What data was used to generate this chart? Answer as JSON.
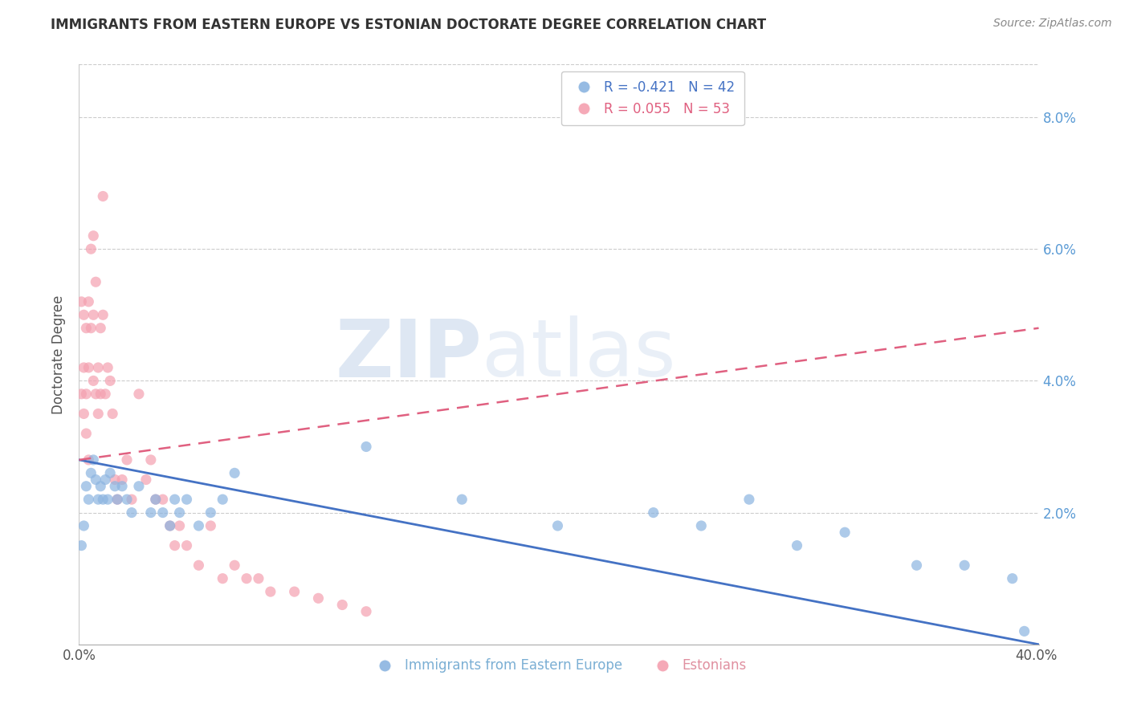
{
  "title": "IMMIGRANTS FROM EASTERN EUROPE VS ESTONIAN DOCTORATE DEGREE CORRELATION CHART",
  "source": "Source: ZipAtlas.com",
  "ylabel": "Doctorate Degree",
  "legend_labels": [
    "Immigrants from Eastern Europe",
    "Estonians"
  ],
  "legend_r": [
    -0.421,
    0.055
  ],
  "legend_n": [
    42,
    53
  ],
  "blue_color": "#8BB4E0",
  "pink_color": "#F4A0B0",
  "blue_line_color": "#4472C4",
  "pink_line_color": "#E06080",
  "watermark_zip": "ZIP",
  "watermark_atlas": "atlas",
  "right_yticks": [
    0.0,
    0.02,
    0.04,
    0.06,
    0.08
  ],
  "right_yticklabels": [
    "",
    "2.0%",
    "4.0%",
    "6.0%",
    "8.0%"
  ],
  "xlim": [
    0.0,
    0.401
  ],
  "ylim": [
    0.0,
    0.088
  ],
  "xticks": [
    0.0,
    0.05,
    0.1,
    0.15,
    0.2,
    0.25,
    0.3,
    0.35,
    0.4
  ],
  "xticklabels": [
    "0.0%",
    "",
    "",
    "",
    "",
    "",
    "",
    "",
    "40.0%"
  ],
  "blue_x": [
    0.001,
    0.002,
    0.003,
    0.004,
    0.005,
    0.006,
    0.007,
    0.008,
    0.009,
    0.01,
    0.011,
    0.012,
    0.013,
    0.015,
    0.016,
    0.018,
    0.02,
    0.022,
    0.025,
    0.03,
    0.032,
    0.035,
    0.038,
    0.04,
    0.042,
    0.045,
    0.05,
    0.055,
    0.06,
    0.065,
    0.12,
    0.16,
    0.2,
    0.24,
    0.26,
    0.28,
    0.3,
    0.32,
    0.35,
    0.37,
    0.39,
    0.395
  ],
  "blue_y": [
    0.015,
    0.018,
    0.024,
    0.022,
    0.026,
    0.028,
    0.025,
    0.022,
    0.024,
    0.022,
    0.025,
    0.022,
    0.026,
    0.024,
    0.022,
    0.024,
    0.022,
    0.02,
    0.024,
    0.02,
    0.022,
    0.02,
    0.018,
    0.022,
    0.02,
    0.022,
    0.018,
    0.02,
    0.022,
    0.026,
    0.03,
    0.022,
    0.018,
    0.02,
    0.018,
    0.022,
    0.015,
    0.017,
    0.012,
    0.012,
    0.01,
    0.002
  ],
  "pink_x": [
    0.001,
    0.001,
    0.002,
    0.002,
    0.002,
    0.003,
    0.003,
    0.003,
    0.004,
    0.004,
    0.004,
    0.005,
    0.005,
    0.006,
    0.006,
    0.006,
    0.007,
    0.007,
    0.008,
    0.008,
    0.009,
    0.009,
    0.01,
    0.01,
    0.011,
    0.012,
    0.013,
    0.014,
    0.015,
    0.016,
    0.018,
    0.02,
    0.022,
    0.025,
    0.028,
    0.03,
    0.032,
    0.035,
    0.038,
    0.04,
    0.042,
    0.045,
    0.05,
    0.055,
    0.06,
    0.065,
    0.07,
    0.075,
    0.08,
    0.09,
    0.1,
    0.11,
    0.12
  ],
  "pink_y": [
    0.038,
    0.052,
    0.05,
    0.042,
    0.035,
    0.048,
    0.038,
    0.032,
    0.042,
    0.052,
    0.028,
    0.06,
    0.048,
    0.062,
    0.05,
    0.04,
    0.055,
    0.038,
    0.042,
    0.035,
    0.048,
    0.038,
    0.068,
    0.05,
    0.038,
    0.042,
    0.04,
    0.035,
    0.025,
    0.022,
    0.025,
    0.028,
    0.022,
    0.038,
    0.025,
    0.028,
    0.022,
    0.022,
    0.018,
    0.015,
    0.018,
    0.015,
    0.012,
    0.018,
    0.01,
    0.012,
    0.01,
    0.01,
    0.008,
    0.008,
    0.007,
    0.006,
    0.005
  ],
  "blue_trend_x": [
    0.0,
    0.401
  ],
  "blue_trend_y": [
    0.028,
    0.0
  ],
  "pink_trend_x": [
    0.0,
    0.401
  ],
  "pink_trend_y": [
    0.028,
    0.048
  ]
}
